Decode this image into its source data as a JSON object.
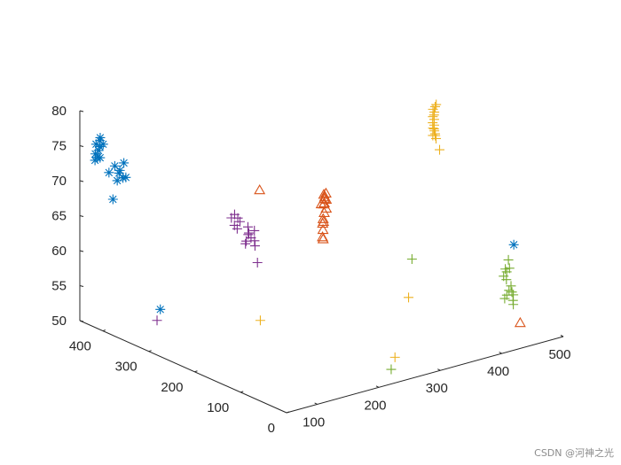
{
  "chart_data": {
    "type": "scatter",
    "dimensions": 3,
    "title": "",
    "xlabel": "",
    "ylabel": "",
    "zlabel": "",
    "xlim": [
      50,
      500
    ],
    "ylim": [
      0,
      450
    ],
    "zlim": [
      50,
      80
    ],
    "x_ticks": [
      "100",
      "200",
      "300",
      "400",
      "500"
    ],
    "y_ticks": [
      "0",
      "100",
      "200",
      "300",
      "400"
    ],
    "z_ticks": [
      "50",
      "55",
      "60",
      "65",
      "70",
      "75",
      "80"
    ],
    "grid": false,
    "legend": "none",
    "series": [
      {
        "color": "#0072BD",
        "marker": "asterisk",
        "points": [
          [
            55,
            423,
            74.5
          ],
          [
            57,
            421,
            74
          ],
          [
            58,
            420,
            75
          ],
          [
            59,
            418,
            74
          ],
          [
            60,
            420,
            75.5
          ],
          [
            56,
            425,
            73.5
          ],
          [
            54,
            420,
            76
          ],
          [
            58,
            417,
            76.5
          ],
          [
            61,
            414,
            76
          ],
          [
            57,
            415,
            77
          ],
          [
            66,
            408,
            72
          ],
          [
            71,
            402,
            73
          ],
          [
            75,
            398,
            72
          ],
          [
            74,
            395,
            72.5
          ],
          [
            79,
            393,
            73.5
          ],
          [
            76,
            391,
            71.5
          ],
          [
            72,
            398,
            71
          ],
          [
            80,
            390,
            71.5
          ],
          [
            65,
            398,
            68.5
          ],
          [
            30,
            248,
            58
          ],
          [
            468,
            65,
            62
          ]
        ]
      },
      {
        "color": "#D95319",
        "marker": "triangle",
        "points": [
          [
            248,
            184,
            71
          ],
          [
            251,
            186,
            70.5
          ],
          [
            253,
            186,
            71
          ],
          [
            255,
            188,
            70
          ],
          [
            247,
            181,
            70.5
          ],
          [
            245,
            179,
            70
          ],
          [
            242,
            176,
            70
          ],
          [
            243,
            172,
            69.5
          ],
          [
            239,
            171,
            69
          ],
          [
            232,
            164,
            68.5
          ],
          [
            234,
            166,
            68
          ],
          [
            229,
            161,
            68
          ],
          [
            231,
            163,
            67
          ],
          [
            226,
            156,
            66
          ],
          [
            222,
            152,
            66.5
          ],
          [
            232,
            168,
            70.5
          ],
          [
            178,
            230,
            72
          ],
          [
            456,
            35,
            52
          ]
        ]
      },
      {
        "color": "#EDB120",
        "marker": "plus",
        "points": [
          [
            430,
            183,
            79.5
          ],
          [
            424,
            182,
            79
          ],
          [
            428,
            185,
            78
          ],
          [
            426,
            182,
            77.5
          ],
          [
            432,
            188,
            79
          ],
          [
            421,
            178,
            76.5
          ],
          [
            424,
            179,
            76
          ],
          [
            426,
            180,
            75.5
          ],
          [
            428,
            185,
            76
          ],
          [
            425,
            184,
            77
          ],
          [
            423,
            181,
            78
          ],
          [
            429,
            186,
            76.5
          ],
          [
            430,
            185,
            75
          ],
          [
            432,
            186,
            74.5
          ],
          [
            434,
            181,
            73
          ],
          [
            420,
            177,
            75.5
          ],
          [
            427,
            183,
            78.5
          ],
          [
            338,
            120,
            56
          ],
          [
            292,
            88,
            49.5
          ],
          [
            153,
            195,
            55
          ]
        ]
      },
      {
        "color": "#7E2F8E",
        "marker": "plus",
        "points": [
          [
            150,
            254,
            68
          ],
          [
            153,
            251,
            68.5
          ],
          [
            156,
            248,
            68
          ],
          [
            158,
            246,
            67.5
          ],
          [
            152,
            250,
            67
          ],
          [
            155,
            248,
            66.5
          ],
          [
            162,
            234,
            67
          ],
          [
            165,
            236,
            66
          ],
          [
            164,
            230,
            65.5
          ],
          [
            168,
            228,
            66.5
          ],
          [
            161,
            232,
            66
          ],
          [
            166,
            224,
            64.5
          ],
          [
            169,
            229,
            65
          ],
          [
            170,
            224,
            62
          ],
          [
            161,
            238,
            64.5
          ],
          [
            160,
            235,
            65
          ],
          [
            65,
            302,
            54
          ]
        ]
      },
      {
        "color": "#77AC30",
        "marker": "plus",
        "points": [
          [
            452,
            62,
            59
          ],
          [
            455,
            63,
            58.5
          ],
          [
            458,
            61,
            59
          ],
          [
            450,
            63,
            58
          ],
          [
            453,
            61,
            57.5
          ],
          [
            460,
            66,
            60
          ],
          [
            455,
            58,
            56
          ],
          [
            459,
            59,
            56.5
          ],
          [
            450,
            56,
            55.5
          ],
          [
            462,
            61,
            55.5
          ],
          [
            448,
            58,
            55
          ],
          [
            465,
            62,
            55
          ],
          [
            460,
            56,
            54.5
          ],
          [
            459,
            54,
            54
          ],
          [
            357,
            138,
            60.5
          ],
          [
            253,
            44,
            50
          ]
        ]
      }
    ]
  },
  "watermark": "CSDN @河神之光"
}
